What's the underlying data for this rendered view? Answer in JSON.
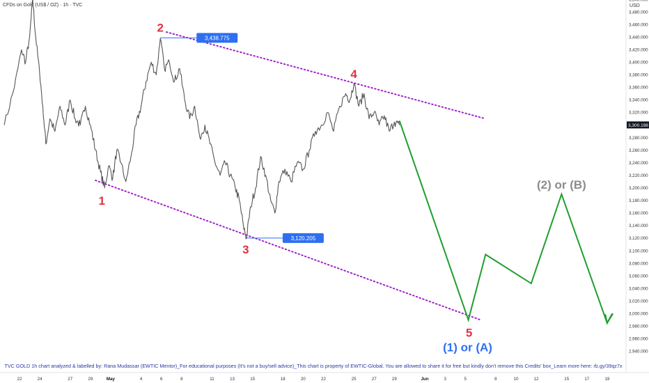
{
  "header": {
    "symbol": "CFDs on Gold (US$ / OZ) · 1h · TVC",
    "currency": "USD"
  },
  "credit": "TVC  GOLD 1h  chart analyzed & labelled by: Rana Mudassar (EWTIC Mentor)_For educational purposes (It's not a buy/sell advice)_This chart is property of EWTIC-Global. You are allowed to share it for free but kindly don't remove this Credits' box_Learn more here: rb.gy/39qz7x",
  "colors": {
    "price": "#555555",
    "channel": "#a020c8",
    "projection": "#1e9e2e",
    "wave_label": "#e03244",
    "blue": "#2d6ff0",
    "gray_label": "#8c8c8c"
  },
  "chart_data": {
    "type": "line",
    "y_axis": {
      "min": 2930,
      "max": 3510,
      "ticks": [
        "3,500.000",
        "3,480.000",
        "3,460.000",
        "3,440.000",
        "3,420.000",
        "3,400.000",
        "3,380.000",
        "3,360.000",
        "3,340.000",
        "3,320.000",
        "3,300.000",
        "3,280.000",
        "3,260.000",
        "3,240.000",
        "3,220.000",
        "3,200.000",
        "3,180.000",
        "3,160.000",
        "3,140.000",
        "3,120.000",
        "3,100.000",
        "3,080.000",
        "3,060.000",
        "3,040.000",
        "3,020.000",
        "3,000.000",
        "2,980.000",
        "2,960.000",
        "2,940.000"
      ]
    },
    "x_axis": {
      "min": 0,
      "max": 63,
      "ticks": [
        {
          "label": "22",
          "d": 0
        },
        {
          "label": "24",
          "d": 2
        },
        {
          "label": "27",
          "d": 5
        },
        {
          "label": "29",
          "d": 7
        },
        {
          "label": "May",
          "d": 9,
          "bold": true
        },
        {
          "label": "4",
          "d": 12
        },
        {
          "label": "6",
          "d": 14
        },
        {
          "label": "8",
          "d": 16
        },
        {
          "label": "11",
          "d": 19
        },
        {
          "label": "13",
          "d": 21
        },
        {
          "label": "15",
          "d": 23
        },
        {
          "label": "18",
          "d": 26
        },
        {
          "label": "20",
          "d": 28
        },
        {
          "label": "22",
          "d": 30
        },
        {
          "label": "25",
          "d": 33
        },
        {
          "label": "27",
          "d": 35
        },
        {
          "label": "29",
          "d": 37
        },
        {
          "label": "Jun",
          "d": 40,
          "bold": true
        },
        {
          "label": "3",
          "d": 42
        },
        {
          "label": "5",
          "d": 44
        },
        {
          "label": "8",
          "d": 47
        },
        {
          "label": "10",
          "d": 49
        },
        {
          "label": "12",
          "d": 51
        },
        {
          "label": "15",
          "d": 54
        },
        {
          "label": "17",
          "d": 56
        },
        {
          "label": "19",
          "d": 58
        }
      ]
    },
    "price_anchors": [
      [
        -1.5,
        3300
      ],
      [
        -0.5,
        3360
      ],
      [
        0.2,
        3420
      ],
      [
        0.6,
        3400
      ],
      [
        1,
        3440
      ],
      [
        1.3,
        3500
      ],
      [
        1.6,
        3440
      ],
      [
        2,
        3380
      ],
      [
        2.3,
        3330
      ],
      [
        2.6,
        3270
      ],
      [
        3,
        3310
      ],
      [
        3.5,
        3290
      ],
      [
        4,
        3330
      ],
      [
        4.5,
        3300
      ],
      [
        5,
        3340
      ],
      [
        5.5,
        3310
      ],
      [
        6,
        3300
      ],
      [
        6.5,
        3330
      ],
      [
        7,
        3300
      ],
      [
        7.5,
        3260
      ],
      [
        8,
        3225
      ],
      [
        8.4,
        3200
      ],
      [
        8.8,
        3235
      ],
      [
        9.2,
        3215
      ],
      [
        9.6,
        3260
      ],
      [
        10,
        3240
      ],
      [
        10.5,
        3210
      ],
      [
        11,
        3250
      ],
      [
        11.5,
        3300
      ],
      [
        12,
        3330
      ],
      [
        12.5,
        3370
      ],
      [
        13,
        3400
      ],
      [
        13.5,
        3380
      ],
      [
        13.9,
        3438
      ],
      [
        14.3,
        3390
      ],
      [
        14.8,
        3400
      ],
      [
        15.3,
        3370
      ],
      [
        15.8,
        3390
      ],
      [
        16.3,
        3340
      ],
      [
        16.8,
        3310
      ],
      [
        17.3,
        3330
      ],
      [
        17.8,
        3280
      ],
      [
        18.3,
        3300
      ],
      [
        18.8,
        3270
      ],
      [
        19.3,
        3240
      ],
      [
        19.8,
        3220
      ],
      [
        20.3,
        3240
      ],
      [
        20.8,
        3220
      ],
      [
        21.3,
        3200
      ],
      [
        21.7,
        3180
      ],
      [
        22.1,
        3140
      ],
      [
        22.4,
        3120
      ],
      [
        22.8,
        3170
      ],
      [
        23.3,
        3200
      ],
      [
        23.8,
        3250
      ],
      [
        24.3,
        3220
      ],
      [
        24.8,
        3180
      ],
      [
        25.2,
        3160
      ],
      [
        25.6,
        3210
      ],
      [
        26.2,
        3230
      ],
      [
        26.8,
        3210
      ],
      [
        27.4,
        3240
      ],
      [
        28,
        3230
      ],
      [
        28.6,
        3260
      ],
      [
        29.2,
        3290
      ],
      [
        29.8,
        3300
      ],
      [
        30.4,
        3320
      ],
      [
        31,
        3290
      ],
      [
        31.6,
        3330
      ],
      [
        32.2,
        3350
      ],
      [
        32.6,
        3340
      ],
      [
        33,
        3366
      ],
      [
        33.5,
        3330
      ],
      [
        34,
        3350
      ],
      [
        34.5,
        3310
      ],
      [
        35,
        3320
      ],
      [
        35.5,
        3300
      ],
      [
        36,
        3315
      ],
      [
        36.5,
        3290
      ],
      [
        37,
        3305
      ],
      [
        37.5,
        3300
      ]
    ],
    "wave_points": [
      {
        "label": "1",
        "d": 8.4,
        "price": 3200
      },
      {
        "label": "2",
        "d": 13.9,
        "price": 3438.775
      },
      {
        "label": "3",
        "d": 22.4,
        "price": 3120.205
      },
      {
        "label": "4",
        "d": 33,
        "price": 3366
      },
      {
        "label": "5",
        "d": 44.3,
        "price": 2990
      }
    ],
    "projection": [
      {
        "d": 37.5,
        "price": 3307
      },
      {
        "d": 44.3,
        "price": 2990
      },
      {
        "d": 46.0,
        "price": 3094
      },
      {
        "d": 50.5,
        "price": 3048
      },
      {
        "d": 53.5,
        "price": 3190
      },
      {
        "d": 58.0,
        "price": 2985
      },
      {
        "d": 58.5,
        "price": 3000
      }
    ],
    "channel_upper": [
      [
        14.5,
        3448
      ],
      [
        46,
        3310
      ]
    ],
    "channel_lower": [
      [
        7.5,
        3212
      ],
      [
        45.5,
        2990
      ]
    ],
    "price_labels": [
      "3,438.775",
      "3,120.205"
    ],
    "last_price": "3,300.198",
    "annotations": [
      "(2) or (B)",
      "(1) or (A)"
    ]
  }
}
